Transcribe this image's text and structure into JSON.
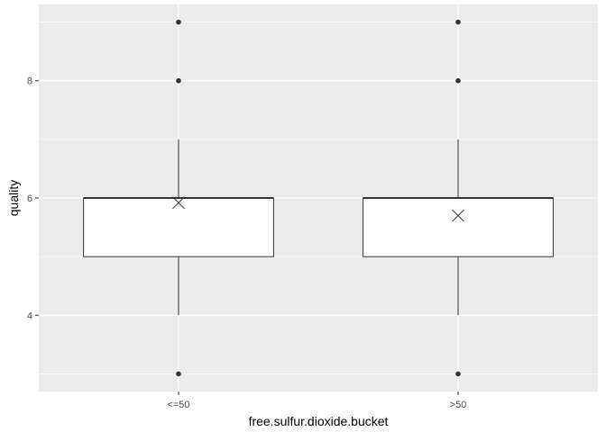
{
  "chart_data": {
    "type": "boxplot",
    "xlabel": "free.sulfur.dioxide.bucket",
    "ylabel": "quality",
    "categories": [
      "<=50",
      ">50"
    ],
    "ylim": [
      2.7,
      9.3
    ],
    "yticks": [
      4,
      6,
      8
    ],
    "grid": true,
    "boxes": [
      {
        "category": "<=50",
        "lower_whisker": 4,
        "q1": 5,
        "median": 6,
        "q3": 6,
        "upper_whisker": 7,
        "mean": 5.92,
        "outliers": [
          3,
          8,
          9
        ]
      },
      {
        "category": ">50",
        "lower_whisker": 4,
        "q1": 5,
        "median": 6,
        "q3": 6,
        "upper_whisker": 7,
        "mean": 5.7,
        "outliers": [
          3,
          8,
          9
        ]
      }
    ],
    "colors": {
      "panel": "#ebebeb",
      "grid": "#ffffff",
      "box_fill": "#ffffff",
      "box_stroke": "#333333"
    }
  }
}
